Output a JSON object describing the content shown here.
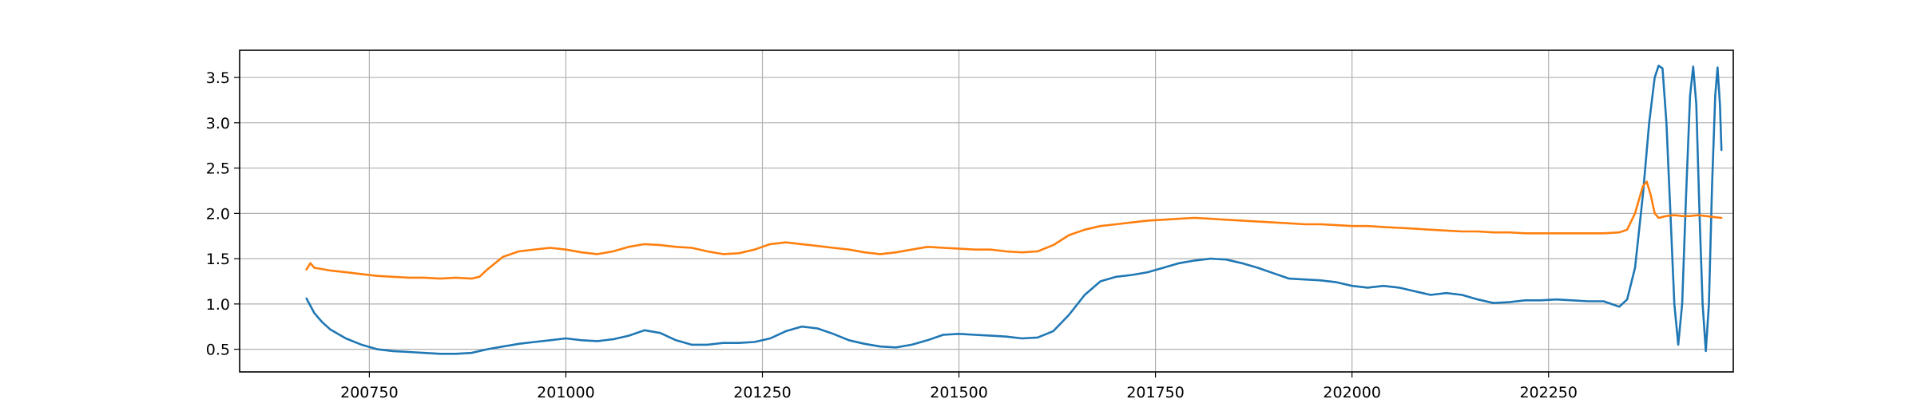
{
  "chart_data": {
    "type": "line",
    "title": "",
    "xlabel": "",
    "ylabel": "",
    "xlim": [
      200585,
      202485
    ],
    "ylim": [
      0.25,
      3.8
    ],
    "grid": true,
    "legend": null,
    "x_ticks": [
      {
        "value": 200750,
        "label": "200750"
      },
      {
        "value": 201000,
        "label": "201000"
      },
      {
        "value": 201250,
        "label": "201250"
      },
      {
        "value": 201500,
        "label": "201500"
      },
      {
        "value": 201750,
        "label": "201750"
      },
      {
        "value": 202000,
        "label": "202000"
      },
      {
        "value": 202250,
        "label": "202250"
      }
    ],
    "y_ticks": [
      {
        "value": 0.5,
        "label": "0.5"
      },
      {
        "value": 1.0,
        "label": "1.0"
      },
      {
        "value": 1.5,
        "label": "1.5"
      },
      {
        "value": 2.0,
        "label": "2.0"
      },
      {
        "value": 2.5,
        "label": "2.5"
      },
      {
        "value": 3.0,
        "label": "3.0"
      },
      {
        "value": 3.5,
        "label": "3.5"
      }
    ],
    "series": [
      {
        "color": "#1f77b4",
        "points": [
          [
            200670,
            1.06
          ],
          [
            200680,
            0.9
          ],
          [
            200690,
            0.8
          ],
          [
            200700,
            0.72
          ],
          [
            200720,
            0.62
          ],
          [
            200740,
            0.55
          ],
          [
            200760,
            0.5
          ],
          [
            200780,
            0.48
          ],
          [
            200800,
            0.47
          ],
          [
            200820,
            0.46
          ],
          [
            200840,
            0.45
          ],
          [
            200860,
            0.45
          ],
          [
            200880,
            0.46
          ],
          [
            200900,
            0.5
          ],
          [
            200920,
            0.53
          ],
          [
            200940,
            0.56
          ],
          [
            200960,
            0.58
          ],
          [
            200980,
            0.6
          ],
          [
            201000,
            0.62
          ],
          [
            201020,
            0.6
          ],
          [
            201040,
            0.59
          ],
          [
            201060,
            0.61
          ],
          [
            201080,
            0.65
          ],
          [
            201100,
            0.71
          ],
          [
            201120,
            0.68
          ],
          [
            201140,
            0.6
          ],
          [
            201160,
            0.55
          ],
          [
            201180,
            0.55
          ],
          [
            201200,
            0.57
          ],
          [
            201220,
            0.57
          ],
          [
            201240,
            0.58
          ],
          [
            201260,
            0.62
          ],
          [
            201280,
            0.7
          ],
          [
            201300,
            0.75
          ],
          [
            201320,
            0.73
          ],
          [
            201340,
            0.67
          ],
          [
            201360,
            0.6
          ],
          [
            201380,
            0.56
          ],
          [
            201400,
            0.53
          ],
          [
            201420,
            0.52
          ],
          [
            201440,
            0.55
          ],
          [
            201460,
            0.6
          ],
          [
            201480,
            0.66
          ],
          [
            201500,
            0.67
          ],
          [
            201520,
            0.66
          ],
          [
            201540,
            0.65
          ],
          [
            201560,
            0.64
          ],
          [
            201580,
            0.62
          ],
          [
            201600,
            0.63
          ],
          [
            201620,
            0.7
          ],
          [
            201640,
            0.88
          ],
          [
            201660,
            1.1
          ],
          [
            201680,
            1.25
          ],
          [
            201700,
            1.3
          ],
          [
            201720,
            1.32
          ],
          [
            201740,
            1.35
          ],
          [
            201760,
            1.4
          ],
          [
            201780,
            1.45
          ],
          [
            201800,
            1.48
          ],
          [
            201820,
            1.5
          ],
          [
            201840,
            1.49
          ],
          [
            201860,
            1.45
          ],
          [
            201880,
            1.4
          ],
          [
            201900,
            1.34
          ],
          [
            201920,
            1.28
          ],
          [
            201940,
            1.27
          ],
          [
            201960,
            1.26
          ],
          [
            201980,
            1.24
          ],
          [
            202000,
            1.2
          ],
          [
            202020,
            1.18
          ],
          [
            202040,
            1.2
          ],
          [
            202060,
            1.18
          ],
          [
            202080,
            1.14
          ],
          [
            202100,
            1.1
          ],
          [
            202120,
            1.12
          ],
          [
            202140,
            1.1
          ],
          [
            202160,
            1.05
          ],
          [
            202180,
            1.01
          ],
          [
            202200,
            1.02
          ],
          [
            202220,
            1.04
          ],
          [
            202240,
            1.04
          ],
          [
            202260,
            1.05
          ],
          [
            202280,
            1.04
          ],
          [
            202300,
            1.03
          ],
          [
            202320,
            1.03
          ],
          [
            202330,
            1.0
          ],
          [
            202340,
            0.97
          ],
          [
            202350,
            1.05
          ],
          [
            202360,
            1.4
          ],
          [
            202370,
            2.2
          ],
          [
            202378,
            3.0
          ],
          [
            202385,
            3.5
          ],
          [
            202390,
            3.63
          ],
          [
            202395,
            3.6
          ],
          [
            202400,
            3.0
          ],
          [
            202405,
            2.0
          ],
          [
            202410,
            1.0
          ],
          [
            202415,
            0.55
          ],
          [
            202420,
            1.0
          ],
          [
            202425,
            2.2
          ],
          [
            202430,
            3.3
          ],
          [
            202434,
            3.62
          ],
          [
            202438,
            3.2
          ],
          [
            202442,
            2.0
          ],
          [
            202446,
            1.0
          ],
          [
            202450,
            0.48
          ],
          [
            202454,
            1.0
          ],
          [
            202458,
            2.3
          ],
          [
            202462,
            3.3
          ],
          [
            202465,
            3.61
          ],
          [
            202468,
            3.2
          ],
          [
            202470,
            2.7
          ]
        ]
      },
      {
        "color": "#ff7f0e",
        "points": [
          [
            200670,
            1.38
          ],
          [
            200675,
            1.45
          ],
          [
            200680,
            1.4
          ],
          [
            200700,
            1.37
          ],
          [
            200720,
            1.35
          ],
          [
            200740,
            1.33
          ],
          [
            200760,
            1.31
          ],
          [
            200780,
            1.3
          ],
          [
            200800,
            1.29
          ],
          [
            200820,
            1.29
          ],
          [
            200840,
            1.28
          ],
          [
            200860,
            1.29
          ],
          [
            200880,
            1.28
          ],
          [
            200890,
            1.3
          ],
          [
            200900,
            1.38
          ],
          [
            200920,
            1.52
          ],
          [
            200940,
            1.58
          ],
          [
            200960,
            1.6
          ],
          [
            200980,
            1.62
          ],
          [
            201000,
            1.6
          ],
          [
            201020,
            1.57
          ],
          [
            201040,
            1.55
          ],
          [
            201060,
            1.58
          ],
          [
            201080,
            1.63
          ],
          [
            201100,
            1.66
          ],
          [
            201120,
            1.65
          ],
          [
            201140,
            1.63
          ],
          [
            201160,
            1.62
          ],
          [
            201180,
            1.58
          ],
          [
            201200,
            1.55
          ],
          [
            201220,
            1.56
          ],
          [
            201240,
            1.6
          ],
          [
            201260,
            1.66
          ],
          [
            201280,
            1.68
          ],
          [
            201300,
            1.66
          ],
          [
            201320,
            1.64
          ],
          [
            201340,
            1.62
          ],
          [
            201360,
            1.6
          ],
          [
            201380,
            1.57
          ],
          [
            201400,
            1.55
          ],
          [
            201420,
            1.57
          ],
          [
            201440,
            1.6
          ],
          [
            201460,
            1.63
          ],
          [
            201480,
            1.62
          ],
          [
            201500,
            1.61
          ],
          [
            201520,
            1.6
          ],
          [
            201540,
            1.6
          ],
          [
            201560,
            1.58
          ],
          [
            201580,
            1.57
          ],
          [
            201600,
            1.58
          ],
          [
            201620,
            1.65
          ],
          [
            201640,
            1.76
          ],
          [
            201660,
            1.82
          ],
          [
            201680,
            1.86
          ],
          [
            201700,
            1.88
          ],
          [
            201720,
            1.9
          ],
          [
            201740,
            1.92
          ],
          [
            201760,
            1.93
          ],
          [
            201780,
            1.94
          ],
          [
            201800,
            1.95
          ],
          [
            201820,
            1.94
          ],
          [
            201840,
            1.93
          ],
          [
            201860,
            1.92
          ],
          [
            201880,
            1.91
          ],
          [
            201900,
            1.9
          ],
          [
            201920,
            1.89
          ],
          [
            201940,
            1.88
          ],
          [
            201960,
            1.88
          ],
          [
            201980,
            1.87
          ],
          [
            202000,
            1.86
          ],
          [
            202020,
            1.86
          ],
          [
            202040,
            1.85
          ],
          [
            202060,
            1.84
          ],
          [
            202080,
            1.83
          ],
          [
            202100,
            1.82
          ],
          [
            202120,
            1.81
          ],
          [
            202140,
            1.8
          ],
          [
            202160,
            1.8
          ],
          [
            202180,
            1.79
          ],
          [
            202200,
            1.79
          ],
          [
            202220,
            1.78
          ],
          [
            202240,
            1.78
          ],
          [
            202260,
            1.78
          ],
          [
            202280,
            1.78
          ],
          [
            202300,
            1.78
          ],
          [
            202320,
            1.78
          ],
          [
            202340,
            1.79
          ],
          [
            202350,
            1.82
          ],
          [
            202360,
            2.0
          ],
          [
            202370,
            2.3
          ],
          [
            202375,
            2.35
          ],
          [
            202380,
            2.2
          ],
          [
            202385,
            2.0
          ],
          [
            202390,
            1.95
          ],
          [
            202400,
            1.97
          ],
          [
            202410,
            1.98
          ],
          [
            202420,
            1.97
          ],
          [
            202430,
            1.97
          ],
          [
            202440,
            1.98
          ],
          [
            202450,
            1.97
          ],
          [
            202460,
            1.96
          ],
          [
            202470,
            1.95
          ]
        ]
      }
    ]
  }
}
